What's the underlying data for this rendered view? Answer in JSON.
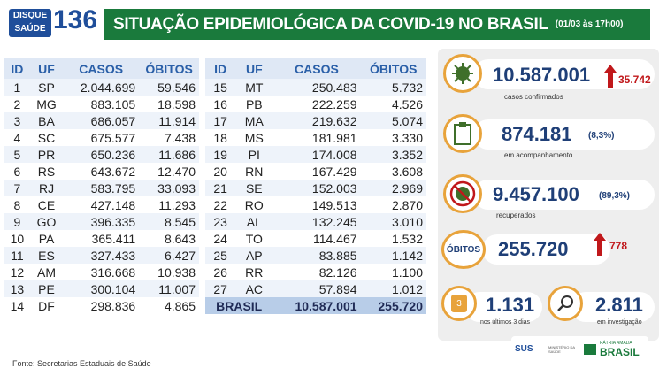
{
  "header": {
    "logo_top": "DISQUE",
    "logo_bottom": "SAÚDE",
    "logo_number": "136",
    "title": "SITUAÇÃO EPIDEMIOLÓGICA DA COVID-19 NO BRASIL",
    "date": "(01/03 às 17h00)"
  },
  "table": {
    "columns": [
      "ID",
      "UF",
      "CASOS",
      "ÓBITOS"
    ],
    "rows": [
      [
        "1",
        "SP",
        "2.044.699",
        "59.546"
      ],
      [
        "2",
        "MG",
        "883.105",
        "18.598"
      ],
      [
        "3",
        "BA",
        "686.057",
        "11.914"
      ],
      [
        "4",
        "SC",
        "675.577",
        "7.438"
      ],
      [
        "5",
        "PR",
        "650.236",
        "11.686"
      ],
      [
        "6",
        "RS",
        "643.672",
        "12.470"
      ],
      [
        "7",
        "RJ",
        "583.795",
        "33.093"
      ],
      [
        "8",
        "CE",
        "427.148",
        "11.293"
      ],
      [
        "9",
        "GO",
        "396.335",
        "8.545"
      ],
      [
        "10",
        "PA",
        "365.411",
        "8.643"
      ],
      [
        "11",
        "ES",
        "327.433",
        "6.427"
      ],
      [
        "12",
        "AM",
        "316.668",
        "10.938"
      ],
      [
        "13",
        "PE",
        "300.104",
        "11.007"
      ],
      [
        "14",
        "DF",
        "298.836",
        "4.865"
      ],
      [
        "15",
        "MT",
        "250.483",
        "5.732"
      ],
      [
        "16",
        "PB",
        "222.259",
        "4.526"
      ],
      [
        "17",
        "MA",
        "219.632",
        "5.074"
      ],
      [
        "18",
        "MS",
        "181.981",
        "3.330"
      ],
      [
        "19",
        "PI",
        "174.008",
        "3.352"
      ],
      [
        "20",
        "RN",
        "167.429",
        "3.608"
      ],
      [
        "21",
        "SE",
        "152.003",
        "2.969"
      ],
      [
        "22",
        "RO",
        "149.513",
        "2.870"
      ],
      [
        "23",
        "AL",
        "132.245",
        "3.010"
      ],
      [
        "24",
        "TO",
        "114.467",
        "1.532"
      ],
      [
        "25",
        "AP",
        "83.885",
        "1.142"
      ],
      [
        "26",
        "RR",
        "82.126",
        "1.100"
      ],
      [
        "27",
        "AC",
        "57.894",
        "1.012"
      ]
    ],
    "total": [
      "BRASIL",
      "10.587.001",
      "255.720"
    ]
  },
  "cards": {
    "confirmed": {
      "value": "10.587.001",
      "increase": "35.742",
      "label": "casos confirmados"
    },
    "monitoring": {
      "value": "874.181",
      "percent": "(8,3%)",
      "label": "em acompanhamento"
    },
    "recovered": {
      "value": "9.457.100",
      "percent": "(89,3%)",
      "label": "recuperados"
    },
    "deaths": {
      "title": "ÓBITOS",
      "value": "255.720",
      "increase": "778"
    },
    "recent": {
      "badge": "3",
      "value": "1.131",
      "label": "nos últimos 3 dias"
    },
    "investigation": {
      "value": "2.811",
      "label": "em investigação"
    }
  },
  "footer": {
    "source": "Fonte: Secretarias Estaduais de Saúde",
    "sus": "SUS",
    "ministry": "MINISTÉRIO DA SAÚDE",
    "motto": "PÁTRIA AMADA",
    "country": "BRASIL"
  }
}
